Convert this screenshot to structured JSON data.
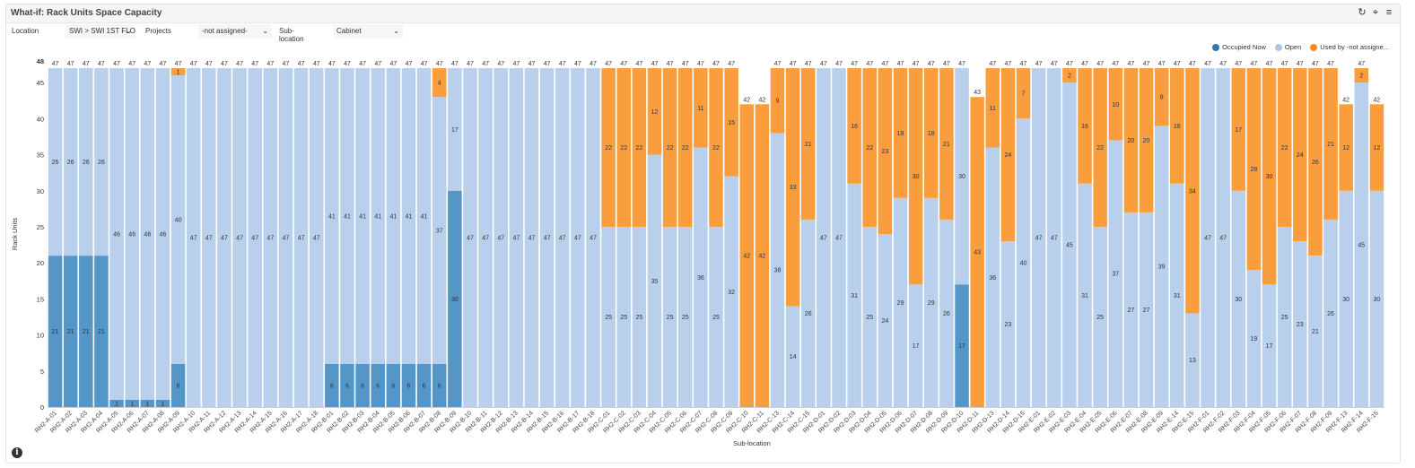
{
  "window": {
    "title": "What-if: Rack Units Space Capacity",
    "icons": [
      "refresh-icon",
      "pin-icon",
      "menu-icon"
    ]
  },
  "filters": {
    "location_label": "Location",
    "location_value": "SWI > SWI 1ST FLO",
    "projects_label": "Projects",
    "projects_value": "-not assigned-",
    "sublocation_label": "Sub-location",
    "sublocation_value": "Cabinet"
  },
  "colors": {
    "occupied": "#5596c9",
    "open": "#b9d0ed",
    "used": "#fa9d3c"
  },
  "chart_data": {
    "type": "bar",
    "stacked": true,
    "ylabel": "Rack Units",
    "xlabel": "Sub-location",
    "ylim": [
      0,
      48
    ],
    "yticks": [
      0,
      5,
      10,
      15,
      20,
      25,
      30,
      35,
      40,
      45,
      48
    ],
    "legend": {
      "position": "top-right",
      "items": [
        "Occupied Now",
        "Open",
        "Used by -not assigne..."
      ]
    },
    "categories": [
      "RH2-A-01",
      "RH2-A-02",
      "RH2-A-03",
      "RH2-A-04",
      "RH2-A-05",
      "RH2-A-06",
      "RH2-A-07",
      "RH2-A-08",
      "RH2-A-09",
      "RH2-A-10",
      "RH2-A-11",
      "RH2-A-12",
      "RH2-A-13",
      "RH2-A-14",
      "RH2-A-15",
      "RH2-A-16",
      "RH2-A-17",
      "RH2-A-18",
      "RH2-B-01",
      "RH2-B-02",
      "RH2-B-03",
      "RH2-B-04",
      "RH2-B-05",
      "RH2-B-06",
      "RH2-B-07",
      "RH2-B-08",
      "RH2-B-09",
      "RH2-B-10",
      "RH2-B-11",
      "RH2-B-12",
      "RH2-B-13",
      "RH2-B-14",
      "RH2-B-15",
      "RH2-B-16",
      "RH2-B-17",
      "RH2-B-18",
      "RH2-C-01",
      "RH2-C-02",
      "RH2-C-03",
      "RH2-C-04",
      "RH2-C-05",
      "RH2-C-06",
      "RH2-C-07",
      "RH2-C-08",
      "RH2-C-09",
      "RH2-C-10",
      "RH2-C-11",
      "RH2-C-13",
      "RH2-C-14",
      "RH2-C-15",
      "RH2-D-01",
      "RH2-D-02",
      "RH2-D-03",
      "RH2-D-04",
      "RH2-D-05",
      "RH2-D-06",
      "RH2-D-07",
      "RH2-D-08",
      "RH2-D-09",
      "RH2-D-10",
      "RH2-D-11",
      "RH2-D-13",
      "RH2-D-14",
      "RH2-D-15",
      "RH2-E-01",
      "RH2-E-02",
      "RH2-E-03",
      "RH2-E-04",
      "RH2-E-05",
      "RH2-E-06",
      "RH2-E-07",
      "RH2-E-08",
      "RH2-E-09",
      "RH2-E-14",
      "RH2-E-15",
      "RH2-F-01",
      "RH2-F-02",
      "RH2-F-03",
      "RH2-F-04",
      "RH2-F-05",
      "RH2-F-06",
      "RH2-F-07",
      "RH2-F-08",
      "RH2-F-09",
      "RH2-F-13",
      "RH2-F-14",
      "RH2-F-15"
    ],
    "series": [
      {
        "name": "Occupied Now",
        "values": [
          21,
          21,
          21,
          21,
          1,
          1,
          1,
          1,
          6,
          0,
          0,
          0,
          0,
          0,
          0,
          0,
          0,
          0,
          6,
          6,
          6,
          6,
          6,
          6,
          6,
          6,
          30,
          0,
          0,
          0,
          0,
          0,
          0,
          0,
          0,
          0,
          0,
          0,
          0,
          0,
          0,
          0,
          0,
          0,
          0,
          0,
          0,
          0,
          0,
          0,
          0,
          0,
          0,
          0,
          0,
          0,
          0,
          0,
          0,
          17,
          0,
          0,
          0,
          0,
          0,
          0,
          0,
          0,
          0,
          0,
          0,
          0,
          0,
          0,
          0,
          0,
          0,
          0,
          0,
          0,
          0,
          0,
          0,
          0,
          0,
          0,
          0
        ]
      },
      {
        "name": "Open",
        "values": [
          26,
          26,
          26,
          26,
          46,
          46,
          46,
          46,
          40,
          47,
          47,
          47,
          47,
          47,
          47,
          47,
          47,
          47,
          41,
          41,
          41,
          41,
          41,
          41,
          41,
          37,
          17,
          47,
          47,
          47,
          47,
          47,
          47,
          47,
          47,
          47,
          25,
          25,
          25,
          35,
          25,
          25,
          36,
          25,
          32,
          0,
          0,
          38,
          14,
          26,
          47,
          47,
          31,
          25,
          24,
          29,
          17,
          29,
          26,
          30,
          0,
          36,
          23,
          40,
          47,
          47,
          45,
          31,
          25,
          37,
          27,
          27,
          39,
          31,
          13,
          47,
          47,
          30,
          19,
          17,
          25,
          23,
          21,
          26,
          30,
          45,
          30
        ]
      },
      {
        "name": "Used by -not assigne...",
        "values": [
          0,
          0,
          0,
          0,
          0,
          0,
          0,
          0,
          1,
          0,
          0,
          0,
          0,
          0,
          0,
          0,
          0,
          0,
          0,
          0,
          0,
          0,
          0,
          0,
          0,
          4,
          0,
          0,
          0,
          0,
          0,
          0,
          0,
          0,
          0,
          0,
          22,
          22,
          22,
          12,
          22,
          22,
          11,
          22,
          15,
          42,
          42,
          9,
          33,
          21,
          0,
          0,
          16,
          22,
          23,
          18,
          30,
          18,
          21,
          0,
          43,
          11,
          24,
          7,
          0,
          0,
          2,
          16,
          22,
          10,
          20,
          20,
          8,
          16,
          34,
          0,
          0,
          17,
          28,
          30,
          22,
          24,
          26,
          21,
          12,
          2,
          12
        ]
      }
    ],
    "totals": [
      47,
      47,
      47,
      47,
      47,
      47,
      47,
      47,
      47,
      47,
      47,
      47,
      47,
      47,
      47,
      47,
      47,
      47,
      47,
      47,
      47,
      47,
      47,
      47,
      47,
      47,
      47,
      47,
      47,
      47,
      47,
      47,
      47,
      47,
      47,
      47,
      47,
      47,
      47,
      47,
      47,
      47,
      47,
      47,
      47,
      42,
      42,
      47,
      47,
      47,
      47,
      47,
      47,
      47,
      47,
      47,
      47,
      47,
      47,
      47,
      43,
      47,
      47,
      47,
      47,
      47,
      47,
      47,
      47,
      47,
      47,
      47,
      47,
      47,
      47,
      47,
      47,
      47,
      47,
      47,
      47,
      47,
      47,
      47,
      42,
      47,
      42
    ]
  }
}
